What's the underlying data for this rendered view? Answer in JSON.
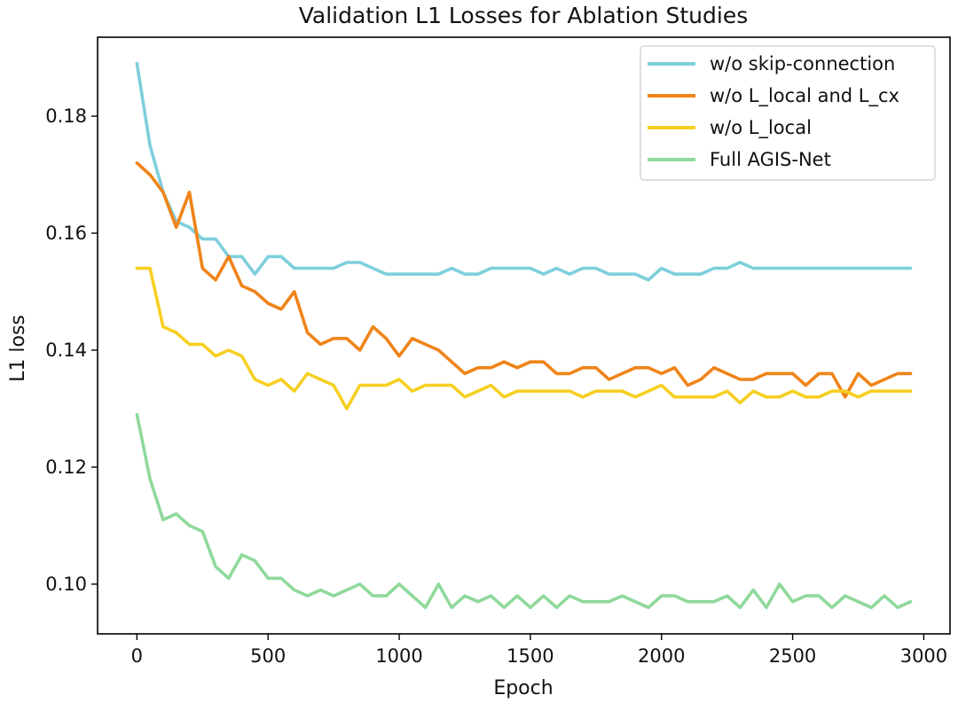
{
  "chart_data": {
    "type": "line",
    "title": "Validation L1 Losses for Ablation Studies",
    "xlabel": "Epoch",
    "ylabel": "L1 loss",
    "xlim": [
      -150,
      3100
    ],
    "ylim": [
      0.0915,
      0.1935
    ],
    "xticks": [
      0,
      500,
      1000,
      1500,
      2000,
      2500,
      3000
    ],
    "xtick_labels": [
      "0",
      "500",
      "1000",
      "1500",
      "2000",
      "2500",
      "3000"
    ],
    "yticks": [
      0.1,
      0.12,
      0.14,
      0.16,
      0.18
    ],
    "ytick_labels": [
      "0.10",
      "0.12",
      "0.14",
      "0.16",
      "0.18"
    ],
    "grid": false,
    "legend_position": "top-right",
    "x": [
      0,
      50,
      100,
      150,
      200,
      250,
      300,
      350,
      400,
      450,
      500,
      550,
      600,
      650,
      700,
      750,
      800,
      850,
      900,
      950,
      1000,
      1050,
      1100,
      1150,
      1200,
      1250,
      1300,
      1350,
      1400,
      1450,
      1500,
      1550,
      1600,
      1650,
      1700,
      1750,
      1800,
      1850,
      1900,
      1950,
      2000,
      2050,
      2100,
      2150,
      2200,
      2250,
      2300,
      2350,
      2400,
      2450,
      2500,
      2550,
      2600,
      2650,
      2700,
      2750,
      2800,
      2850,
      2900,
      2950
    ],
    "series": [
      {
        "name": "w/o skip-connection",
        "color": "#7ecfdc",
        "values": [
          0.189,
          0.175,
          0.167,
          0.162,
          0.161,
          0.159,
          0.159,
          0.156,
          0.156,
          0.153,
          0.156,
          0.156,
          0.154,
          0.154,
          0.154,
          0.154,
          0.155,
          0.155,
          0.154,
          0.153,
          0.153,
          0.153,
          0.153,
          0.153,
          0.154,
          0.153,
          0.153,
          0.154,
          0.154,
          0.154,
          0.154,
          0.153,
          0.154,
          0.153,
          0.154,
          0.154,
          0.153,
          0.153,
          0.153,
          0.152,
          0.154,
          0.153,
          0.153,
          0.153,
          0.154,
          0.154,
          0.155,
          0.154,
          0.154,
          0.154,
          0.154,
          0.154,
          0.154,
          0.154,
          0.154,
          0.154,
          0.154,
          0.154,
          0.154,
          0.154
        ]
      },
      {
        "name": "w/o L_local and L_cx",
        "color": "#f08419",
        "values": [
          0.172,
          0.17,
          0.167,
          0.161,
          0.167,
          0.154,
          0.152,
          0.156,
          0.151,
          0.15,
          0.148,
          0.147,
          0.15,
          0.143,
          0.141,
          0.142,
          0.142,
          0.14,
          0.144,
          0.142,
          0.139,
          0.142,
          0.141,
          0.14,
          0.138,
          0.136,
          0.137,
          0.137,
          0.138,
          0.137,
          0.138,
          0.138,
          0.136,
          0.136,
          0.137,
          0.137,
          0.135,
          0.136,
          0.137,
          0.137,
          0.136,
          0.137,
          0.134,
          0.135,
          0.137,
          0.136,
          0.135,
          0.135,
          0.136,
          0.136,
          0.136,
          0.134,
          0.136,
          0.136,
          0.132,
          0.136,
          0.134,
          0.135,
          0.136,
          0.136
        ]
      },
      {
        "name": "w/o L_local",
        "color": "#f7cf22",
        "values": [
          0.154,
          0.154,
          0.144,
          0.143,
          0.141,
          0.141,
          0.139,
          0.14,
          0.139,
          0.135,
          0.134,
          0.135,
          0.133,
          0.136,
          0.135,
          0.134,
          0.13,
          0.134,
          0.134,
          0.134,
          0.135,
          0.133,
          0.134,
          0.134,
          0.134,
          0.132,
          0.133,
          0.134,
          0.132,
          0.133,
          0.133,
          0.133,
          0.133,
          0.133,
          0.132,
          0.133,
          0.133,
          0.133,
          0.132,
          0.133,
          0.134,
          0.132,
          0.132,
          0.132,
          0.132,
          0.133,
          0.131,
          0.133,
          0.132,
          0.132,
          0.133,
          0.132,
          0.132,
          0.133,
          0.133,
          0.132,
          0.133,
          0.133,
          0.133,
          0.133
        ]
      },
      {
        "name": "Full AGIS-Net",
        "color": "#8fd99b",
        "values": [
          0.129,
          0.118,
          0.111,
          0.112,
          0.11,
          0.109,
          0.103,
          0.101,
          0.105,
          0.104,
          0.101,
          0.101,
          0.099,
          0.098,
          0.099,
          0.098,
          0.099,
          0.1,
          0.098,
          0.098,
          0.1,
          0.098,
          0.096,
          0.1,
          0.096,
          0.098,
          0.097,
          0.098,
          0.096,
          0.098,
          0.096,
          0.098,
          0.096,
          0.098,
          0.097,
          0.097,
          0.097,
          0.098,
          0.097,
          0.096,
          0.098,
          0.098,
          0.097,
          0.097,
          0.097,
          0.098,
          0.096,
          0.099,
          0.096,
          0.1,
          0.097,
          0.098,
          0.098,
          0.096,
          0.098,
          0.097,
          0.096,
          0.098,
          0.096,
          0.097
        ]
      }
    ]
  }
}
